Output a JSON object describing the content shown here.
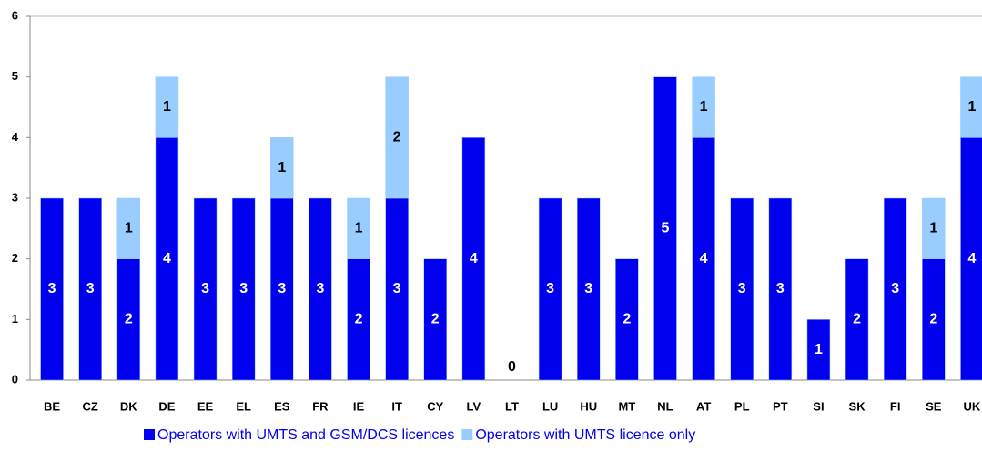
{
  "chart_data": {
    "type": "stacked_bar",
    "categories": [
      "BE",
      "CZ",
      "DK",
      "DE",
      "EE",
      "EL",
      "ES",
      "FR",
      "IE",
      "IT",
      "CY",
      "LV",
      "LT",
      "LU",
      "HU",
      "MT",
      "NL",
      "AT",
      "PL",
      "PT",
      "SI",
      "SK",
      "FI",
      "SE",
      "UK"
    ],
    "series": [
      {
        "name": "Operators with UMTS and GSM/DCS licences",
        "color": "#0000ee",
        "values": [
          3,
          3,
          2,
          4,
          3,
          3,
          3,
          3,
          2,
          3,
          2,
          4,
          0,
          3,
          3,
          2,
          5,
          4,
          3,
          3,
          1,
          2,
          3,
          2,
          4
        ]
      },
      {
        "name": "Operators with UMTS licence only",
        "color": "#99ccff",
        "values": [
          null,
          null,
          1,
          1,
          null,
          null,
          1,
          null,
          1,
          2,
          null,
          null,
          null,
          null,
          null,
          null,
          null,
          1,
          null,
          null,
          null,
          null,
          null,
          1,
          1
        ]
      }
    ],
    "ylim": [
      0,
      6
    ],
    "yticks": [
      0,
      1,
      2,
      3,
      4,
      5,
      6
    ],
    "legend": "bottom"
  }
}
